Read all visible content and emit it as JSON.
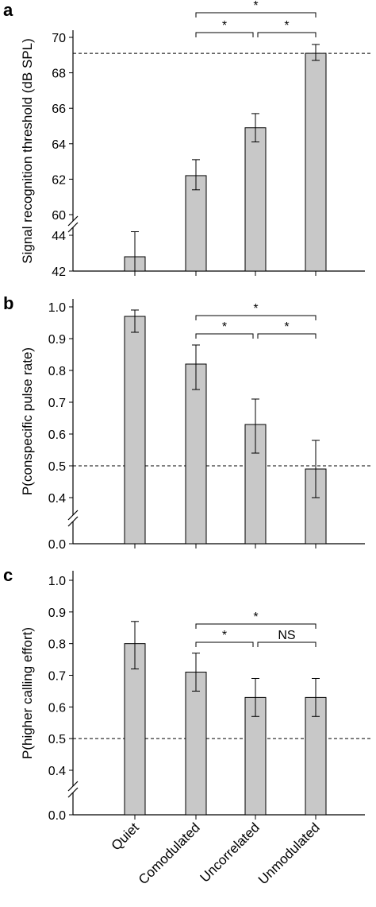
{
  "categories": [
    "Quiet",
    "Comodulated",
    "Uncorrelated",
    "Unmodulated"
  ],
  "chart_data": [
    {
      "type": "bar",
      "panel": "a",
      "ylabel": "Signal recognition threshold (dB SPL)",
      "categories": [
        "Quiet",
        "Comodulated",
        "Uncorrelated",
        "Unmodulated"
      ],
      "values": [
        42.8,
        62.2,
        64.9,
        69.1
      ],
      "err_low": [
        42.0,
        61.4,
        64.1,
        68.7
      ],
      "err_high": [
        44.2,
        63.1,
        65.7,
        69.6
      ],
      "axis_break": true,
      "lower_ticks": [
        "42",
        "44"
      ],
      "upper_ticks": [
        "60",
        "62",
        "64",
        "66",
        "68",
        "70"
      ],
      "reference_line": 69.1,
      "significance": [
        {
          "from": "Comodulated",
          "to": "Uncorrelated",
          "label": "*"
        },
        {
          "from": "Uncorrelated",
          "to": "Unmodulated",
          "label": "*"
        },
        {
          "from": "Comodulated",
          "to": "Unmodulated",
          "label": "*"
        }
      ]
    },
    {
      "type": "bar",
      "panel": "b",
      "ylabel": "P(conspecific pulse rate)",
      "categories": [
        "Quiet",
        "Comodulated",
        "Uncorrelated",
        "Unmodulated"
      ],
      "values": [
        0.97,
        0.82,
        0.63,
        0.49
      ],
      "err_low": [
        0.92,
        0.74,
        0.54,
        0.4
      ],
      "err_high": [
        0.99,
        0.88,
        0.71,
        0.58
      ],
      "axis_break": true,
      "lower_ticks": [
        "0.0"
      ],
      "upper_ticks": [
        "0.4",
        "0.5",
        "0.6",
        "0.7",
        "0.8",
        "0.9",
        "1.0"
      ],
      "reference_line": 0.5,
      "significance": [
        {
          "from": "Comodulated",
          "to": "Uncorrelated",
          "label": "*"
        },
        {
          "from": "Uncorrelated",
          "to": "Unmodulated",
          "label": "*"
        },
        {
          "from": "Comodulated",
          "to": "Unmodulated",
          "label": "*"
        }
      ]
    },
    {
      "type": "bar",
      "panel": "c",
      "ylabel": "P(higher calling effort)",
      "categories": [
        "Quiet",
        "Comodulated",
        "Uncorrelated",
        "Unmodulated"
      ],
      "values": [
        0.8,
        0.71,
        0.63,
        0.63
      ],
      "err_low": [
        0.72,
        0.65,
        0.57,
        0.57
      ],
      "err_high": [
        0.87,
        0.77,
        0.69,
        0.69
      ],
      "axis_break": true,
      "lower_ticks": [
        "0.0"
      ],
      "upper_ticks": [
        "0.4",
        "0.5",
        "0.6",
        "0.7",
        "0.8",
        "0.9",
        "1.0"
      ],
      "reference_line": 0.5,
      "significance": [
        {
          "from": "Comodulated",
          "to": "Uncorrelated",
          "label": "*"
        },
        {
          "from": "Uncorrelated",
          "to": "Unmodulated",
          "label": "NS"
        },
        {
          "from": "Comodulated",
          "to": "Unmodulated",
          "label": "*"
        }
      ]
    }
  ]
}
